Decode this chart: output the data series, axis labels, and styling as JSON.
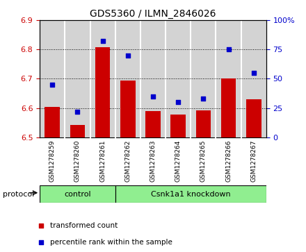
{
  "title": "GDS5360 / ILMN_2846026",
  "samples": [
    "GSM1278259",
    "GSM1278260",
    "GSM1278261",
    "GSM1278262",
    "GSM1278263",
    "GSM1278264",
    "GSM1278265",
    "GSM1278266",
    "GSM1278267"
  ],
  "bar_values": [
    6.605,
    6.543,
    6.808,
    6.693,
    6.59,
    6.578,
    6.592,
    6.702,
    6.63
  ],
  "dot_percentiles": [
    45,
    22,
    82,
    70,
    35,
    30,
    33,
    75,
    55
  ],
  "bar_color": "#cc0000",
  "dot_color": "#0000cc",
  "ylim_left": [
    6.5,
    6.9
  ],
  "ylim_right": [
    0,
    100
  ],
  "yticks_left": [
    6.5,
    6.6,
    6.7,
    6.8,
    6.9
  ],
  "yticks_right": [
    0,
    25,
    50,
    75,
    100
  ],
  "control_indices": [
    0,
    1,
    2
  ],
  "treatment_indices": [
    3,
    4,
    5,
    6,
    7,
    8
  ],
  "control_label": "control",
  "treatment_label": "Csnk1a1 knockdown",
  "protocol_text": "protocol",
  "legend_bar_label": "transformed count",
  "legend_dot_label": "percentile rank within the sample",
  "bar_base": 6.5,
  "cell_bg_color": "#d3d3d3",
  "proto_color": "#90EE90",
  "white": "#ffffff"
}
